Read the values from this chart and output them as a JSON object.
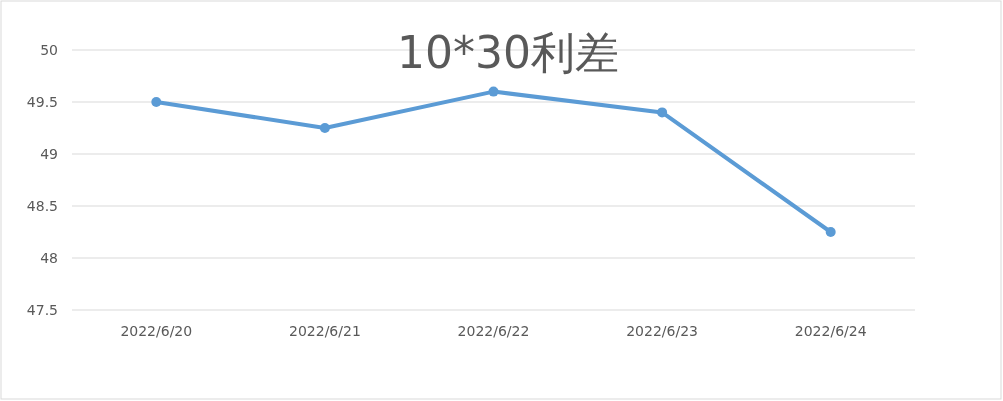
{
  "chart_data": {
    "type": "line",
    "title": "10*30利差",
    "categories": [
      "2022/6/20",
      "2022/6/21",
      "2022/6/22",
      "2022/6/23",
      "2022/6/24"
    ],
    "series": [
      {
        "color": "#5b9bd5",
        "values": [
          49.5,
          49.25,
          49.6,
          49.4,
          48.25
        ]
      }
    ],
    "ylim": [
      47.5,
      50
    ],
    "yticks": [
      47.5,
      48,
      48.5,
      49,
      49.5,
      50
    ],
    "grid": "y",
    "marker": "circle",
    "line_style": "solid"
  }
}
